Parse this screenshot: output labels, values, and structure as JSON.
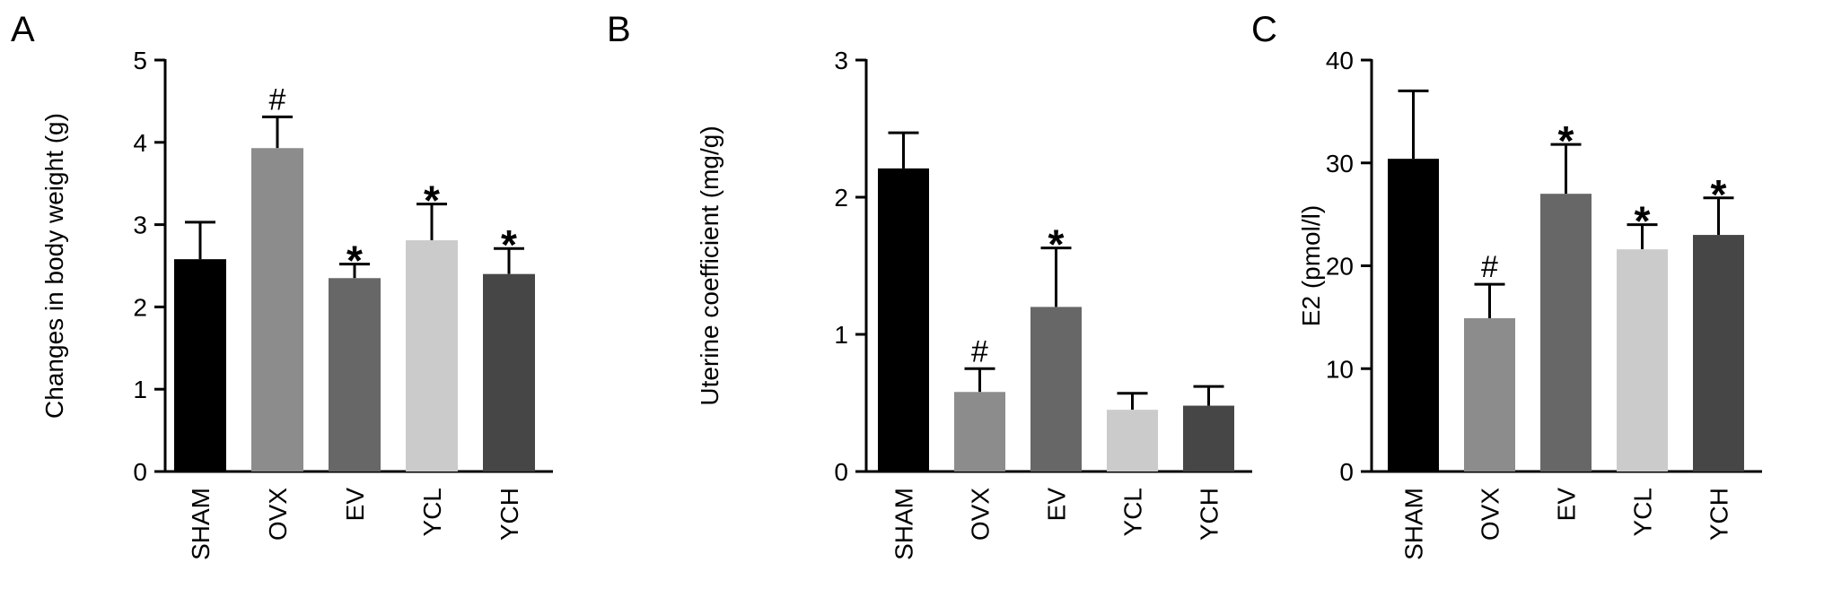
{
  "chart_data": [
    {
      "panel_label": "A",
      "type": "bar",
      "categories": [
        "SHAM",
        "OVX",
        "EV",
        "YCL",
        "YCH"
      ],
      "values": [
        2.58,
        3.93,
        2.35,
        2.81,
        2.4
      ],
      "errors": [
        0.45,
        0.38,
        0.17,
        0.44,
        0.31
      ],
      "annotations": [
        "",
        "#",
        "*",
        "*",
        "*"
      ],
      "bar_colors": [
        "#000000",
        "#8c8c8c",
        "#676767",
        "#cbcbcb",
        "#464646"
      ],
      "ylabel": "Changes in body weight (g)",
      "ylim": [
        0,
        5
      ],
      "yticks": [
        0,
        1,
        2,
        3,
        4,
        5
      ],
      "title": "",
      "xlabel": ""
    },
    {
      "panel_label": "B",
      "type": "bar",
      "categories": [
        "SHAM",
        "OVX",
        "EV",
        "YCL",
        "YCH"
      ],
      "values": [
        2.21,
        0.58,
        1.2,
        0.45,
        0.48
      ],
      "errors": [
        0.26,
        0.17,
        0.43,
        0.12,
        0.14
      ],
      "annotations": [
        "",
        "#",
        "*",
        "",
        ""
      ],
      "bar_colors": [
        "#000000",
        "#8c8c8c",
        "#676767",
        "#cbcbcb",
        "#464646"
      ],
      "ylabel": "Uterine coefficient (mg/g)",
      "ylim": [
        0,
        3
      ],
      "yticks": [
        0,
        1,
        2,
        3
      ],
      "title": "",
      "xlabel": ""
    },
    {
      "panel_label": "C",
      "type": "bar",
      "categories": [
        "SHAM",
        "OVX",
        "EV",
        "YCL",
        "YCH"
      ],
      "values": [
        30.4,
        14.9,
        27.0,
        21.6,
        23.0
      ],
      "errors": [
        6.6,
        3.3,
        4.8,
        2.4,
        3.6
      ],
      "annotations": [
        "",
        "#",
        "*",
        "*",
        "*"
      ],
      "bar_colors": [
        "#000000",
        "#8c8c8c",
        "#676767",
        "#cbcbcb",
        "#464646"
      ],
      "ylabel": "E2 (pmol/l)",
      "ylim": [
        0,
        40
      ],
      "yticks": [
        0,
        10,
        20,
        30,
        40
      ],
      "title": "",
      "xlabel": ""
    }
  ]
}
